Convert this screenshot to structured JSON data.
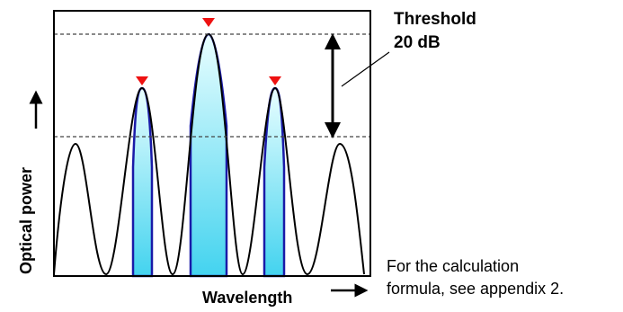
{
  "diagram": {
    "y_axis_label": "Optical power",
    "x_axis_label": "Wavelength",
    "threshold": {
      "title": "Threshold",
      "value": "20 dB"
    },
    "note": {
      "line1": "For the calculation",
      "line2": "formula, see appendix 2."
    },
    "peaks_marked": 3,
    "colors": {
      "frame": "#000000",
      "curve": "#000000",
      "peak_outline": "#1a1aa8",
      "peak_fill_top": "#e9feff",
      "peak_fill_bottom": "#43d3ef",
      "marker": "#ee1111",
      "dashed_line": "#444444"
    },
    "icons": {
      "marker": "red-triangle-marker",
      "threshold_span": "double-headed-arrow",
      "axis_arrows": "right-and-up-arrows"
    }
  }
}
